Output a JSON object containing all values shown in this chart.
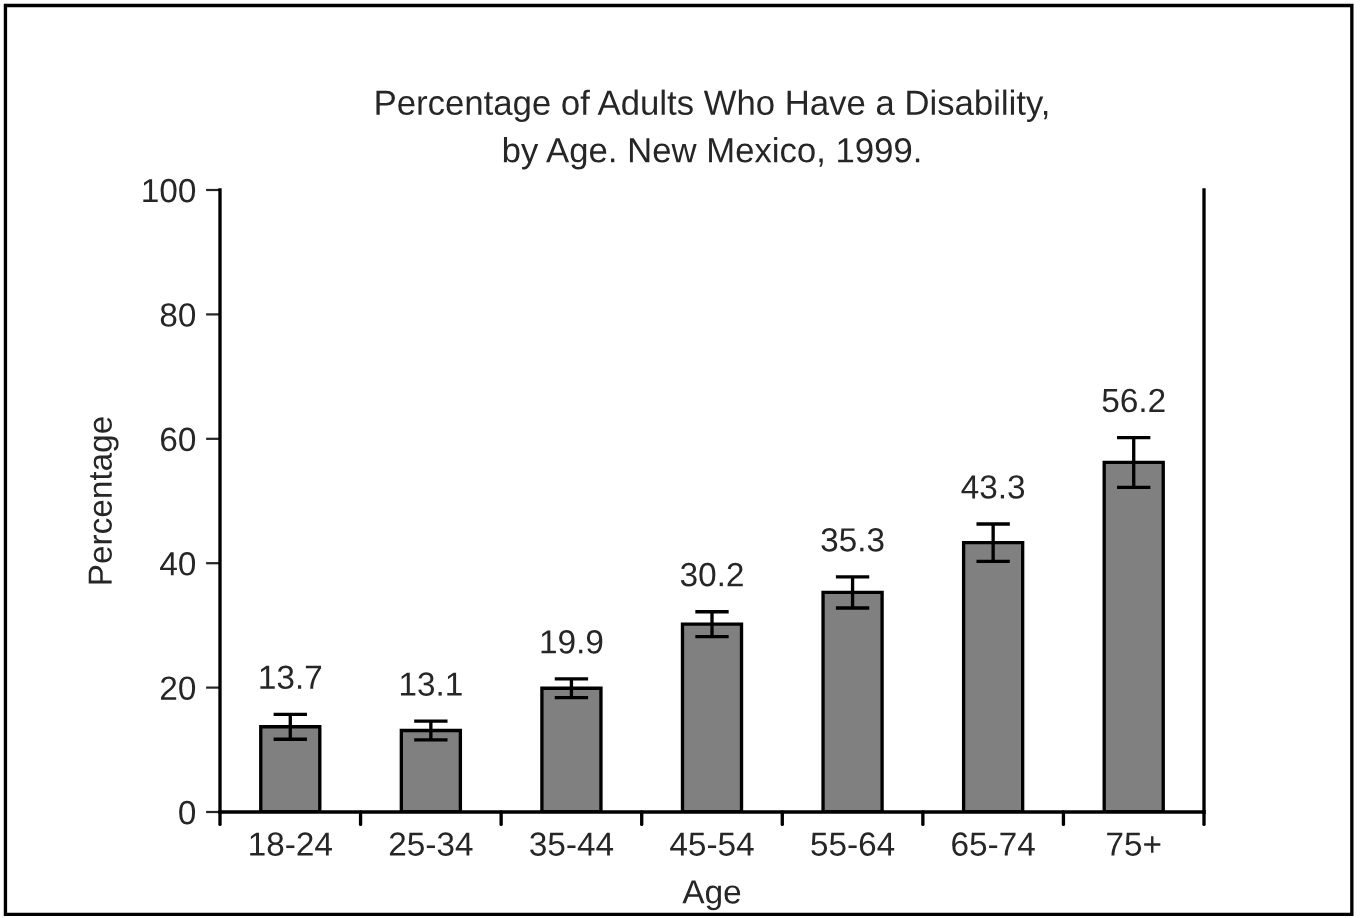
{
  "chart_data": {
    "type": "bar",
    "title": "Percentage of Adults Who Have a Disability,\nby Age. New Mexico, 1999.",
    "xlabel": "Age",
    "ylabel": "Percentage",
    "categories": [
      "18-24",
      "25-34",
      "35-44",
      "45-54",
      "55-64",
      "65-74",
      "75+"
    ],
    "values": [
      13.7,
      13.1,
      19.9,
      30.2,
      35.3,
      43.3,
      56.2
    ],
    "errors": [
      2,
      1.5,
      1.5,
      2,
      2.5,
      3,
      4
    ],
    "color": "#808080",
    "data_labels": true,
    "ylim": [
      0,
      100
    ],
    "yticks": [
      0,
      20,
      40,
      60,
      80,
      100
    ],
    "grid": false
  }
}
